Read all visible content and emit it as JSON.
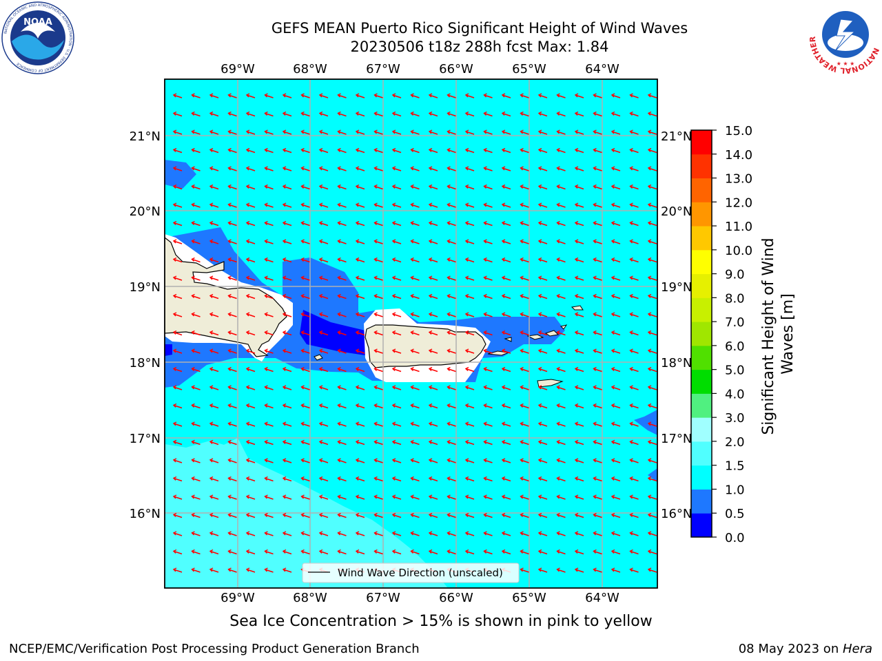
{
  "header": {
    "title_line1": "GEFS MEAN Puerto Rico Significant Height of Wind Waves",
    "title_line2": "20230506 t18z 288h fcst   Max: 1.84"
  },
  "map": {
    "lon_labels": [
      "69°W",
      "68°W",
      "67°W",
      "66°W",
      "65°W",
      "64°W"
    ],
    "lat_labels": [
      "21°N",
      "20°N",
      "19°N",
      "18°N",
      "17°N",
      "16°N"
    ],
    "legend_label": "Wind Wave Direction (unscaled)",
    "arrow_color": "#ff0000",
    "background_color": "#00ffff",
    "land_color": "#efedd8"
  },
  "colorbar": {
    "label": "Significant Height of Wind Waves [m]",
    "label_line1": "Significant Height of Wind",
    "label_line2": "Waves [m]",
    "ticks": [
      "0.0",
      "0.5",
      "1.0",
      "1.5",
      "2.0",
      "3.0",
      "4.0",
      "5.0",
      "6.0",
      "7.0",
      "8.0",
      "9.0",
      "10.0",
      "11.0",
      "12.0",
      "13.0",
      "14.0",
      "15.0"
    ],
    "colors": [
      "#0000ff",
      "#1e78ff",
      "#00ffff",
      "#50ffff",
      "#a0ffff",
      "#50f080",
      "#00dd00",
      "#50e000",
      "#a0e600",
      "#c8f000",
      "#e6f000",
      "#ffff00",
      "#ffc800",
      "#ff9600",
      "#ff6400",
      "#ff3200",
      "#ff0000"
    ]
  },
  "subtitle": "Sea Ice Concentration > 15% is shown in pink to yellow",
  "footer": {
    "left": "NCEP/EMC/Verification Post Processing Product Generation Branch",
    "right_prefix": "08 May 2023 on ",
    "right_host": "Hera"
  },
  "logos": {
    "noaa_text": "NOAA",
    "noaa_ring_text": "NATIONAL OCEANIC AND ATMOSPHERIC ADMINISTRATION · U.S. DEPARTMENT OF COMMERCE",
    "nws_ring_text": "NATIONAL WEATHER SERVICE"
  }
}
